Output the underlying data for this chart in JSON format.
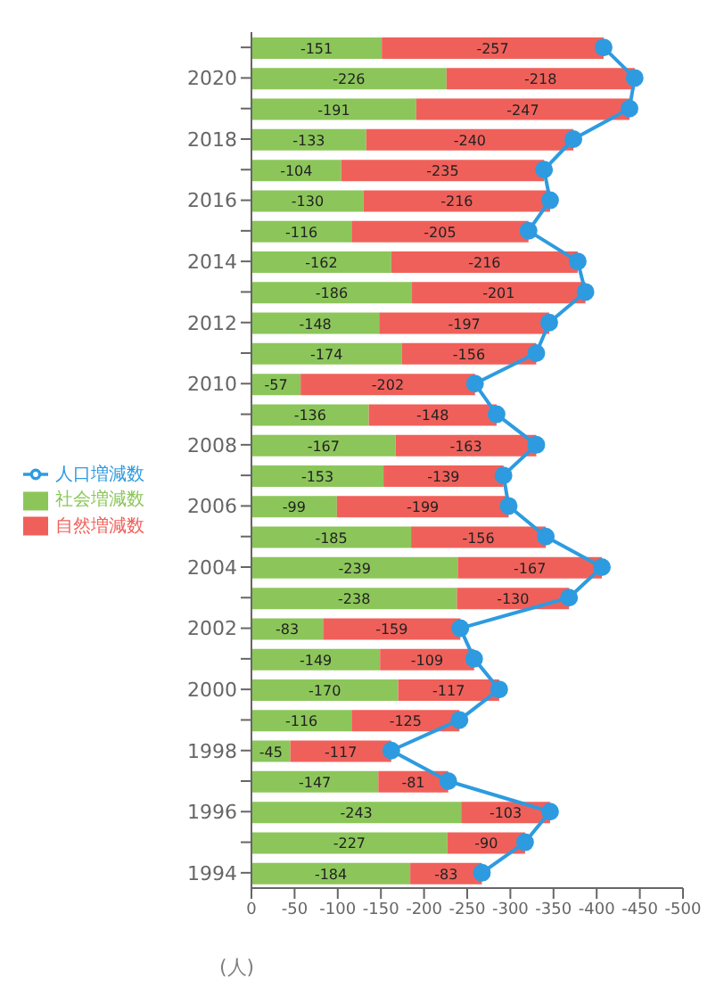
{
  "chart_data": {
    "type": "bar",
    "orientation": "horizontal",
    "stacked": true,
    "xlabel": "(人)",
    "categories": [
      null,
      "2020",
      null,
      "2018",
      null,
      "2016",
      null,
      "2014",
      null,
      "2012",
      null,
      "2010",
      null,
      "2008",
      null,
      "2006",
      null,
      "2004",
      null,
      "2002",
      null,
      "2000",
      null,
      "1998",
      null,
      "1996",
      null,
      "1994"
    ],
    "series": [
      {
        "name": "社会増減数",
        "color": "#8cc65a",
        "values": [
          -151,
          -226,
          -191,
          -133,
          -104,
          -130,
          -116,
          -162,
          -186,
          -148,
          -174,
          -57,
          -136,
          -167,
          -153,
          -99,
          -185,
          -239,
          -238,
          -83,
          -149,
          -170,
          -116,
          -45,
          -147,
          -243,
          -227,
          -184
        ],
        "value_labels": [
          "-151",
          "-226",
          "-191",
          "-133",
          "-104",
          "-130",
          "-116",
          "-162",
          "-186",
          "-148",
          "-174",
          "-57",
          "-136",
          "-167",
          "-153",
          "-99",
          "-185",
          "-239",
          "-238",
          "-83",
          "-149",
          "-170",
          "-116",
          "-45",
          "-147",
          "-243",
          "-227",
          "-184"
        ]
      },
      {
        "name": "自然増減数",
        "color": "#f0605a",
        "values": [
          -257,
          -218,
          -247,
          -240,
          -235,
          -216,
          -205,
          -216,
          -201,
          -197,
          -156,
          -202,
          -148,
          -163,
          -139,
          -199,
          -156,
          -167,
          -130,
          -159,
          -109,
          -117,
          -125,
          -117,
          -81,
          -103,
          -90,
          -83
        ],
        "value_labels": [
          "-257",
          "-218",
          "-247",
          "-240",
          "-235",
          "-216",
          "-205",
          "-216",
          "-201",
          "-197",
          "-156",
          "-202",
          "-148",
          "-163",
          "-139",
          "-199",
          "-156",
          "-167",
          "-130",
          "-159",
          "-109",
          "-117",
          "-125",
          "-117",
          "-81",
          "-103",
          "-90",
          "-83"
        ]
      },
      {
        "name": "人口増減数",
        "type": "line",
        "color": "#2e9be0",
        "values": [
          -408,
          -444,
          -438,
          -373,
          -339,
          -346,
          -321,
          -378,
          -387,
          -345,
          -330,
          -259,
          -284,
          -330,
          -292,
          -298,
          -341,
          -406,
          -368,
          -242,
          -258,
          -287,
          -241,
          -162,
          -228,
          -346,
          -317,
          -267
        ]
      }
    ],
    "xlim": [
      0,
      -500
    ],
    "xticks": [
      0,
      -50,
      -100,
      -150,
      -200,
      -250,
      -300,
      -350,
      -400,
      -450,
      -500
    ],
    "marker": "circle",
    "line_style": "solid",
    "legend": "left",
    "grid": false
  }
}
